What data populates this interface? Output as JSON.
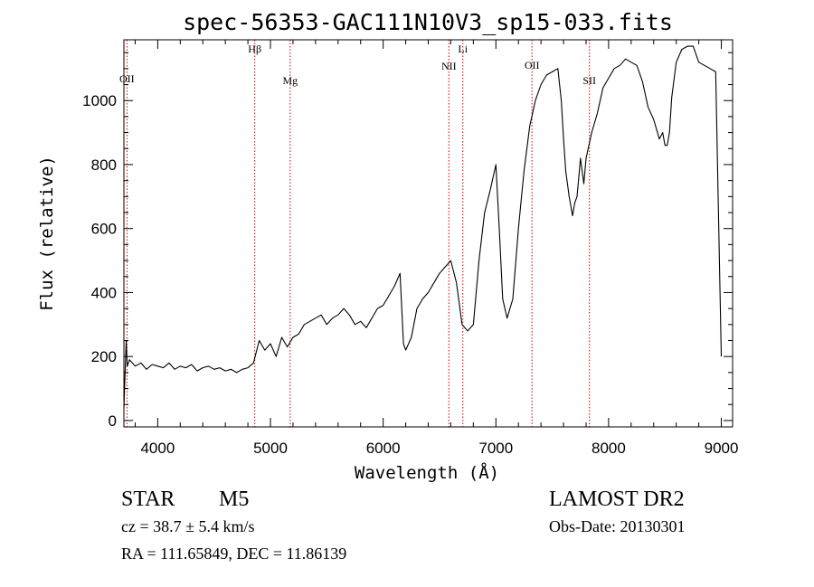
{
  "chart_data": {
    "type": "line",
    "title": "spec-56353-GAC111N10V3_sp15-033.fits",
    "xlabel": "Wavelength (Å)",
    "ylabel": "Flux (relative)",
    "xlim": [
      3700,
      9100
    ],
    "ylim": [
      -20,
      1190
    ],
    "x_ticks": [
      4000,
      5000,
      6000,
      7000,
      8000,
      9000
    ],
    "y_ticks": [
      0,
      200,
      400,
      600,
      800,
      1000
    ],
    "grid": false,
    "line_color": "#000000",
    "marker_color": "#cc0000",
    "lines": [
      {
        "label": "OII",
        "wavelength": 3727
      },
      {
        "label": "Hβ",
        "wavelength": 4861
      },
      {
        "label": "Mg",
        "wavelength": 5175
      },
      {
        "label": "NII",
        "wavelength": 6583
      },
      {
        "label": "Li",
        "wavelength": 6707
      },
      {
        "label": "OII",
        "wavelength": 7320
      },
      {
        "label": "SII",
        "wavelength": 7830
      }
    ],
    "series": [
      {
        "x": [
          3700,
          3720,
          3730,
          3750,
          3800,
          3850,
          3900,
          3950,
          4000,
          4050,
          4100,
          4150,
          4200,
          4250,
          4300,
          4350,
          4400,
          4450,
          4500,
          4550,
          4600,
          4650,
          4700,
          4750,
          4800,
          4850,
          4900,
          4950,
          5000,
          5050,
          5100,
          5150,
          5200,
          5250,
          5300,
          5350,
          5400,
          5450,
          5500,
          5550,
          5600,
          5650,
          5700,
          5750,
          5800,
          5850,
          5900,
          5950,
          6000,
          6050,
          6100,
          6150,
          6180,
          6200,
          6250,
          6300,
          6350,
          6400,
          6450,
          6500,
          6550,
          6600,
          6650,
          6700,
          6750,
          6800,
          6850,
          6900,
          6950,
          7000,
          7030,
          7060,
          7100,
          7150,
          7200,
          7250,
          7300,
          7350,
          7400,
          7450,
          7500,
          7550,
          7580,
          7600,
          7620,
          7650,
          7680,
          7700,
          7720,
          7750,
          7780,
          7800,
          7850,
          7900,
          7950,
          8000,
          8050,
          8100,
          8150,
          8200,
          8250,
          8300,
          8350,
          8400,
          8450,
          8480,
          8500,
          8520,
          8540,
          8560,
          8600,
          8650,
          8700,
          8750,
          8800,
          8850,
          8900,
          8950,
          9000
        ],
        "y": [
          40,
          250,
          170,
          190,
          170,
          180,
          160,
          175,
          170,
          165,
          180,
          160,
          170,
          165,
          175,
          155,
          165,
          170,
          160,
          165,
          155,
          160,
          150,
          160,
          165,
          180,
          250,
          220,
          240,
          200,
          260,
          230,
          260,
          270,
          300,
          310,
          320,
          330,
          300,
          320,
          330,
          350,
          330,
          300,
          310,
          290,
          320,
          350,
          360,
          390,
          420,
          460,
          240,
          220,
          260,
          350,
          380,
          400,
          430,
          460,
          480,
          500,
          430,
          300,
          280,
          300,
          500,
          650,
          720,
          800,
          600,
          380,
          320,
          380,
          600,
          780,
          920,
          1000,
          1050,
          1080,
          1090,
          1100,
          1000,
          880,
          780,
          700,
          640,
          680,
          700,
          820,
          740,
          820,
          900,
          960,
          1040,
          1070,
          1100,
          1110,
          1130,
          1120,
          1110,
          1060,
          980,
          940,
          880,
          900,
          860,
          860,
          900,
          1010,
          1120,
          1160,
          1170,
          1170,
          1120,
          1110,
          1100,
          1090,
          200
        ]
      }
    ]
  },
  "info": {
    "class_label": "STAR",
    "subclass": "M5",
    "survey": "LAMOST DR2",
    "redshift": "cz = 38.7 ± 5.4 km/s",
    "obs_date": "Obs-Date: 20130301",
    "coords": "RA = 111.65849, DEC =  11.86139"
  }
}
